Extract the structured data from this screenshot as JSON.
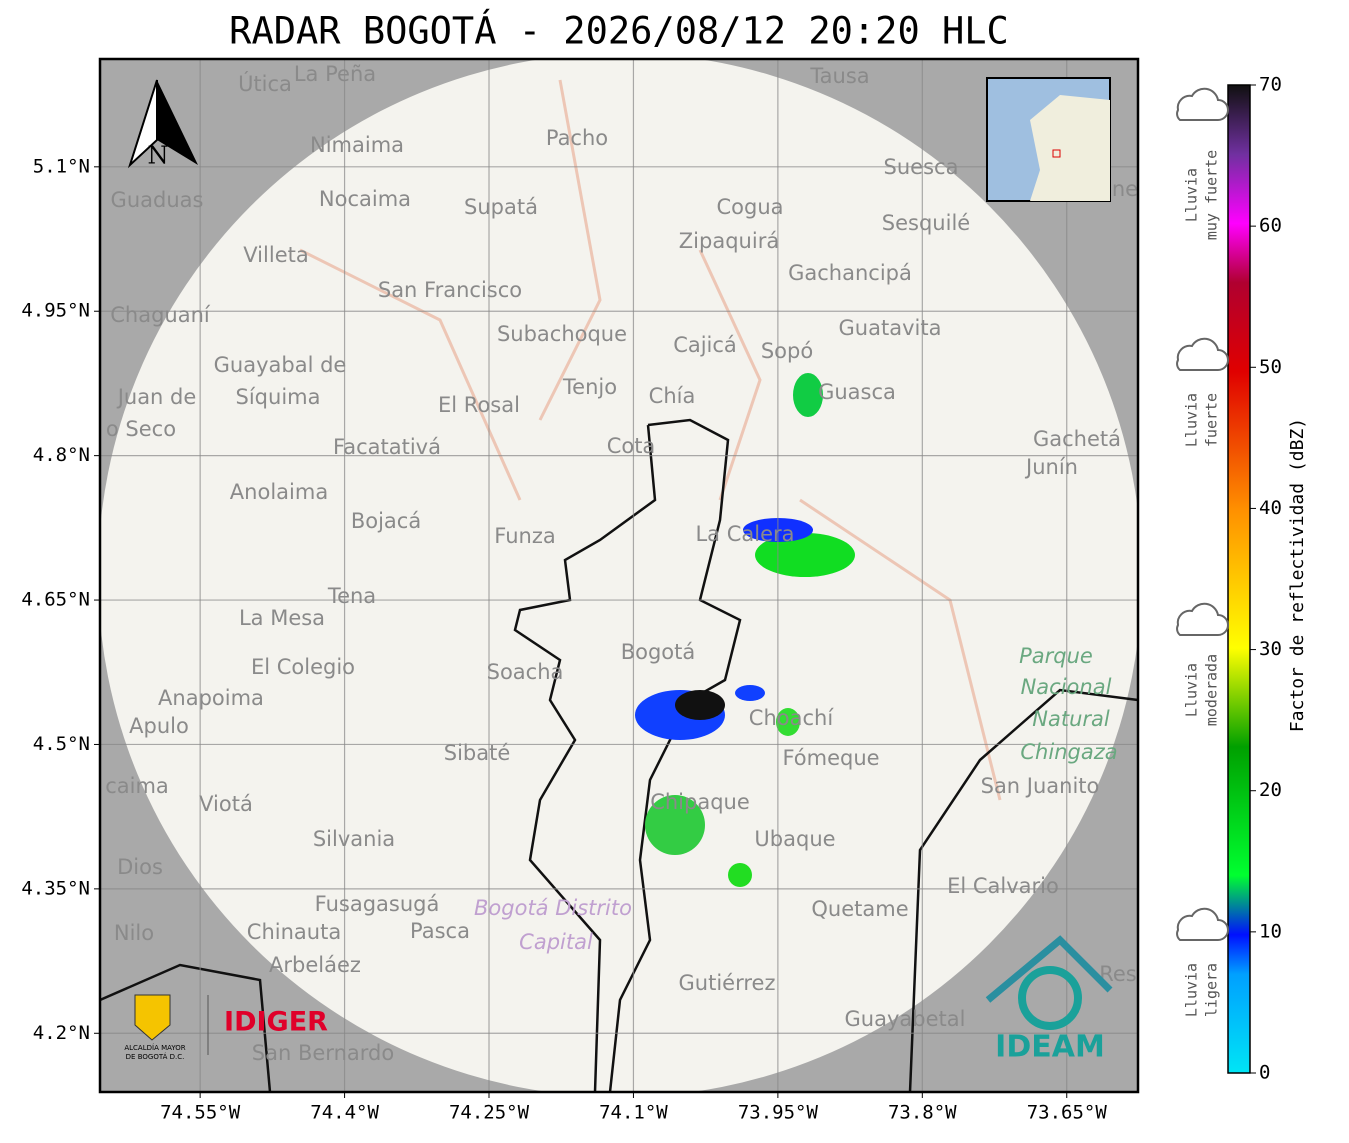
{
  "title": "RADAR BOGOTÁ - 2026/08/12 20:20 HLC",
  "map": {
    "xlim": [
      -74.654,
      -73.576
    ],
    "ylim": [
      4.139,
      5.212
    ],
    "xticks": [
      {
        "value": -74.55,
        "label": "74.55°W"
      },
      {
        "value": -74.4,
        "label": "74.4°W"
      },
      {
        "value": -74.25,
        "label": "74.25°W"
      },
      {
        "value": -74.1,
        "label": "74.1°W"
      },
      {
        "value": -73.95,
        "label": "73.95°W"
      },
      {
        "value": -73.8,
        "label": "73.8°W"
      },
      {
        "value": -73.65,
        "label": "73.65°W"
      }
    ],
    "yticks": [
      {
        "value": 5.1,
        "label": "5.1°N"
      },
      {
        "value": 4.95,
        "label": "4.95°N"
      },
      {
        "value": 4.8,
        "label": "4.8°N"
      },
      {
        "value": 4.65,
        "label": "4.65°N"
      },
      {
        "value": 4.5,
        "label": "4.5°N"
      },
      {
        "value": 4.35,
        "label": "4.35°N"
      },
      {
        "value": 4.2,
        "label": "4.2°N"
      }
    ],
    "grid": true,
    "north": "N",
    "places": [
      "Útica",
      "La Peña",
      "Tausa",
      "Nimaima",
      "Pacho",
      "Suesca",
      "Guaduas",
      "Nocaima",
      "Supatá",
      "Cogua",
      "Sesquilé",
      "Zipaquirá",
      "Villeta",
      "Gachancipá",
      "San Francisco",
      "Chaguaní",
      "Guatavita",
      "Subachoque",
      "Cajicá",
      "Sopó",
      "Guayabal de",
      "Síquima",
      "Juan de",
      "o Seco",
      "Tenjo",
      "Chía",
      "Guasca",
      "El Rosal",
      "Facatativá",
      "Gachetá",
      "Junín",
      "Cota",
      "Anolaima",
      "Bojacá",
      "Funza",
      "La Calera",
      "Tena",
      "La Mesa",
      "Bogotá",
      "El Colegio",
      "Soacha",
      "Anapoima",
      "Apulo",
      "Choachí",
      "Sibaté",
      "Fómeque",
      "San Juanito",
      "caima",
      "Viotá",
      "Chipaque",
      "Silvania",
      "Ubaque",
      "Dios",
      "El Calvario",
      "Fusagasugá",
      "Quetame",
      "Nilo",
      "Chinauta",
      "Pasca",
      "Arbeláez",
      "Gutiérrez",
      "Guayabetal",
      "San Bernardo",
      "Res",
      "ne"
    ],
    "park": [
      "Parque",
      "Nacional",
      "Natural",
      "Chingaza"
    ],
    "district": [
      "Bogotá Distrito",
      "Capital"
    ],
    "logos": {
      "alcaldia": [
        "ALCALDÍA MAYOR",
        "DE BOGOTÁ D.C."
      ],
      "idiger": "IDIGER",
      "ideam": "IDEAM"
    }
  },
  "colorbar": {
    "label": "Factor de reflectividad (dBZ)",
    "ylim": [
      0,
      70
    ],
    "yticks": [
      0,
      10,
      20,
      30,
      40,
      50,
      60,
      70
    ],
    "categories": [
      [
        "Lluvia",
        "muy fuerte"
      ],
      [
        "Lluvia",
        "fuerte"
      ],
      [
        "Lluvia",
        "moderada"
      ],
      [
        "Lluvia",
        "ligera"
      ]
    ]
  }
}
